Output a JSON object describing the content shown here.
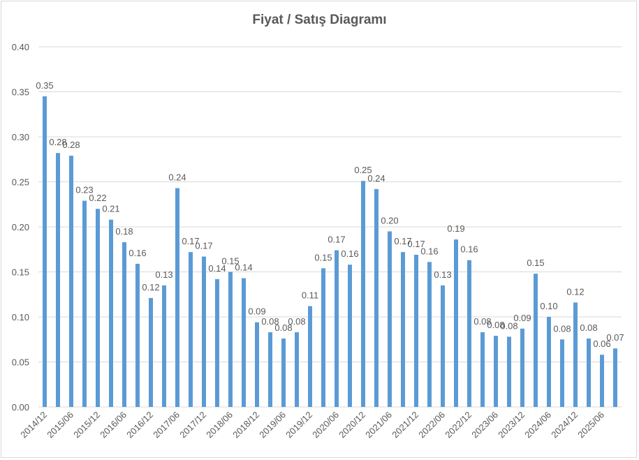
{
  "chart_data": {
    "type": "bar",
    "title": "Fiyat / Satış Diagramı",
    "xlabel": "",
    "ylabel": "",
    "ylim": [
      0,
      0.4
    ],
    "yticks": [
      "0.00",
      "0.05",
      "0.10",
      "0.15",
      "0.20",
      "0.25",
      "0.30",
      "0.35",
      "0.40"
    ],
    "grid": true,
    "legend": "none",
    "bar_color": "#5b9bd5",
    "categories": [
      "2014/12",
      "",
      "2015/06",
      "",
      "2015/12",
      "",
      "2016/06",
      "",
      "2016/12",
      "",
      "2017/06",
      "",
      "2017/12",
      "",
      "2018/06",
      "",
      "2018/12",
      "",
      "2019/06",
      "",
      "2019/12",
      "",
      "2020/06",
      "",
      "2020/12",
      "",
      "2021/06",
      "",
      "2021/12",
      "",
      "2022/06",
      "",
      "2022/12",
      "",
      "2023/06",
      "",
      "2023/12",
      "",
      "2024/06",
      "",
      "2024/12",
      "",
      "2025/06",
      ""
    ],
    "values": [
      0.345,
      0.282,
      0.279,
      0.229,
      0.22,
      0.208,
      0.183,
      0.159,
      0.121,
      0.135,
      0.243,
      0.172,
      0.167,
      0.142,
      0.15,
      0.143,
      0.094,
      0.083,
      0.076,
      0.083,
      0.112,
      0.154,
      0.174,
      0.158,
      0.251,
      0.242,
      0.195,
      0.172,
      0.169,
      0.161,
      0.135,
      0.186,
      0.163,
      0.083,
      0.079,
      0.078,
      0.087,
      0.148,
      0.1,
      0.075,
      0.116,
      0.076,
      0.058,
      0.065
    ],
    "data_labels": [
      "0.35",
      "0.28",
      "0.28",
      "0.23",
      "0.22",
      "0.21",
      "0.18",
      "0.16",
      "0.12",
      "0.13",
      "0.24",
      "0.17",
      "0.17",
      "0.14",
      "0.15",
      "0.14",
      "0.09",
      "0.08",
      "0.08",
      "0.08",
      "0.11",
      "0.15",
      "0.17",
      "0.16",
      "0.25",
      "0.24",
      "0.20",
      "0.17",
      "0.17",
      "0.16",
      "0.13",
      "0.19",
      "0.16",
      "0.08",
      "0.08",
      "0.08",
      "0.09",
      "0.15",
      "0.10",
      "0.08",
      "0.12",
      "0.08",
      "0.06",
      "0.07"
    ]
  }
}
